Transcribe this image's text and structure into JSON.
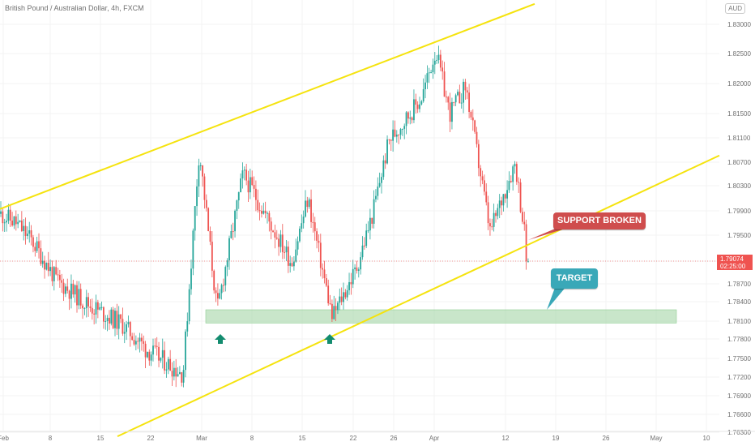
{
  "header": {
    "title": "British Pound / Australian Dollar, 4h, FXCM",
    "currency": "AUD"
  },
  "price_box": {
    "price": "1.79074",
    "countdown": "02:25:00"
  },
  "annotations": {
    "support_broken": "SUPPORT BROKEN",
    "target": "TARGET"
  },
  "colors": {
    "up": "#26a69a",
    "down": "#ef5350",
    "channel": "#f5e30e",
    "target_zone": "#a5d6a7",
    "arrow": "#138c6f",
    "support_label": "#cf4d4d",
    "target_label": "#3aa8b8"
  },
  "chart_data": {
    "type": "candlestick",
    "symbol": "GBPAUD",
    "timeframe": "4h",
    "y_ticks": [
      "1.83000",
      "1.82500",
      "1.82000",
      "1.81500",
      "1.81100",
      "1.80700",
      "1.80300",
      "1.79900",
      "1.79500",
      "1.79074",
      "1.78700",
      "1.78400",
      "1.78100",
      "1.77800",
      "1.77500",
      "1.77200",
      "1.76900",
      "1.76600",
      "1.76300"
    ],
    "x_ticks": [
      "Feb",
      "8",
      "15",
      "22",
      "Mar",
      "8",
      "15",
      "22",
      "26",
      "Apr",
      "12",
      "19",
      "26",
      "May",
      "10"
    ],
    "ylim": [
      1.762,
      1.8335
    ],
    "path_points": [
      {
        "x": "Feb",
        "y": 1.7985
      },
      {
        "x": "8",
        "y": 1.797
      },
      {
        "x": "8",
        "y": 1.794
      },
      {
        "x": "15",
        "y": 1.7875
      },
      {
        "x": "15",
        "y": 1.7835
      },
      {
        "x": "22",
        "y": 1.7805
      },
      {
        "x": "22",
        "y": 1.7765
      },
      {
        "x": "Mar",
        "y": 1.7725
      },
      {
        "x": "Mar",
        "y": 1.809
      },
      {
        "x": "Mar",
        "y": 1.7825
      },
      {
        "x": "8",
        "y": 1.805
      },
      {
        "x": "8",
        "y": 1.799
      },
      {
        "x": "15",
        "y": 1.7905
      },
      {
        "x": "15",
        "y": 1.801
      },
      {
        "x": "22",
        "y": 1.7815
      },
      {
        "x": "22",
        "y": 1.7895
      },
      {
        "x": "26",
        "y": 1.7985
      },
      {
        "x": "26",
        "y": 1.8105
      },
      {
        "x": "Apr",
        "y": 1.8175
      },
      {
        "x": "Apr",
        "y": 1.8255
      },
      {
        "x": "Apr",
        "y": 1.815
      },
      {
        "x": "Apr",
        "y": 1.8195
      },
      {
        "x": "12",
        "y": 1.7955
      },
      {
        "x": "12",
        "y": 1.807
      },
      {
        "x": "12",
        "y": 1.7907
      }
    ],
    "last_price": 1.79074,
    "target_zone": [
      1.7812,
      1.7825
    ],
    "upper_channel": {
      "from_price": 1.7993,
      "to_price": 1.8335
    },
    "lower_channel": {
      "from_price": 1.7623,
      "to_price": 1.8081
    }
  }
}
